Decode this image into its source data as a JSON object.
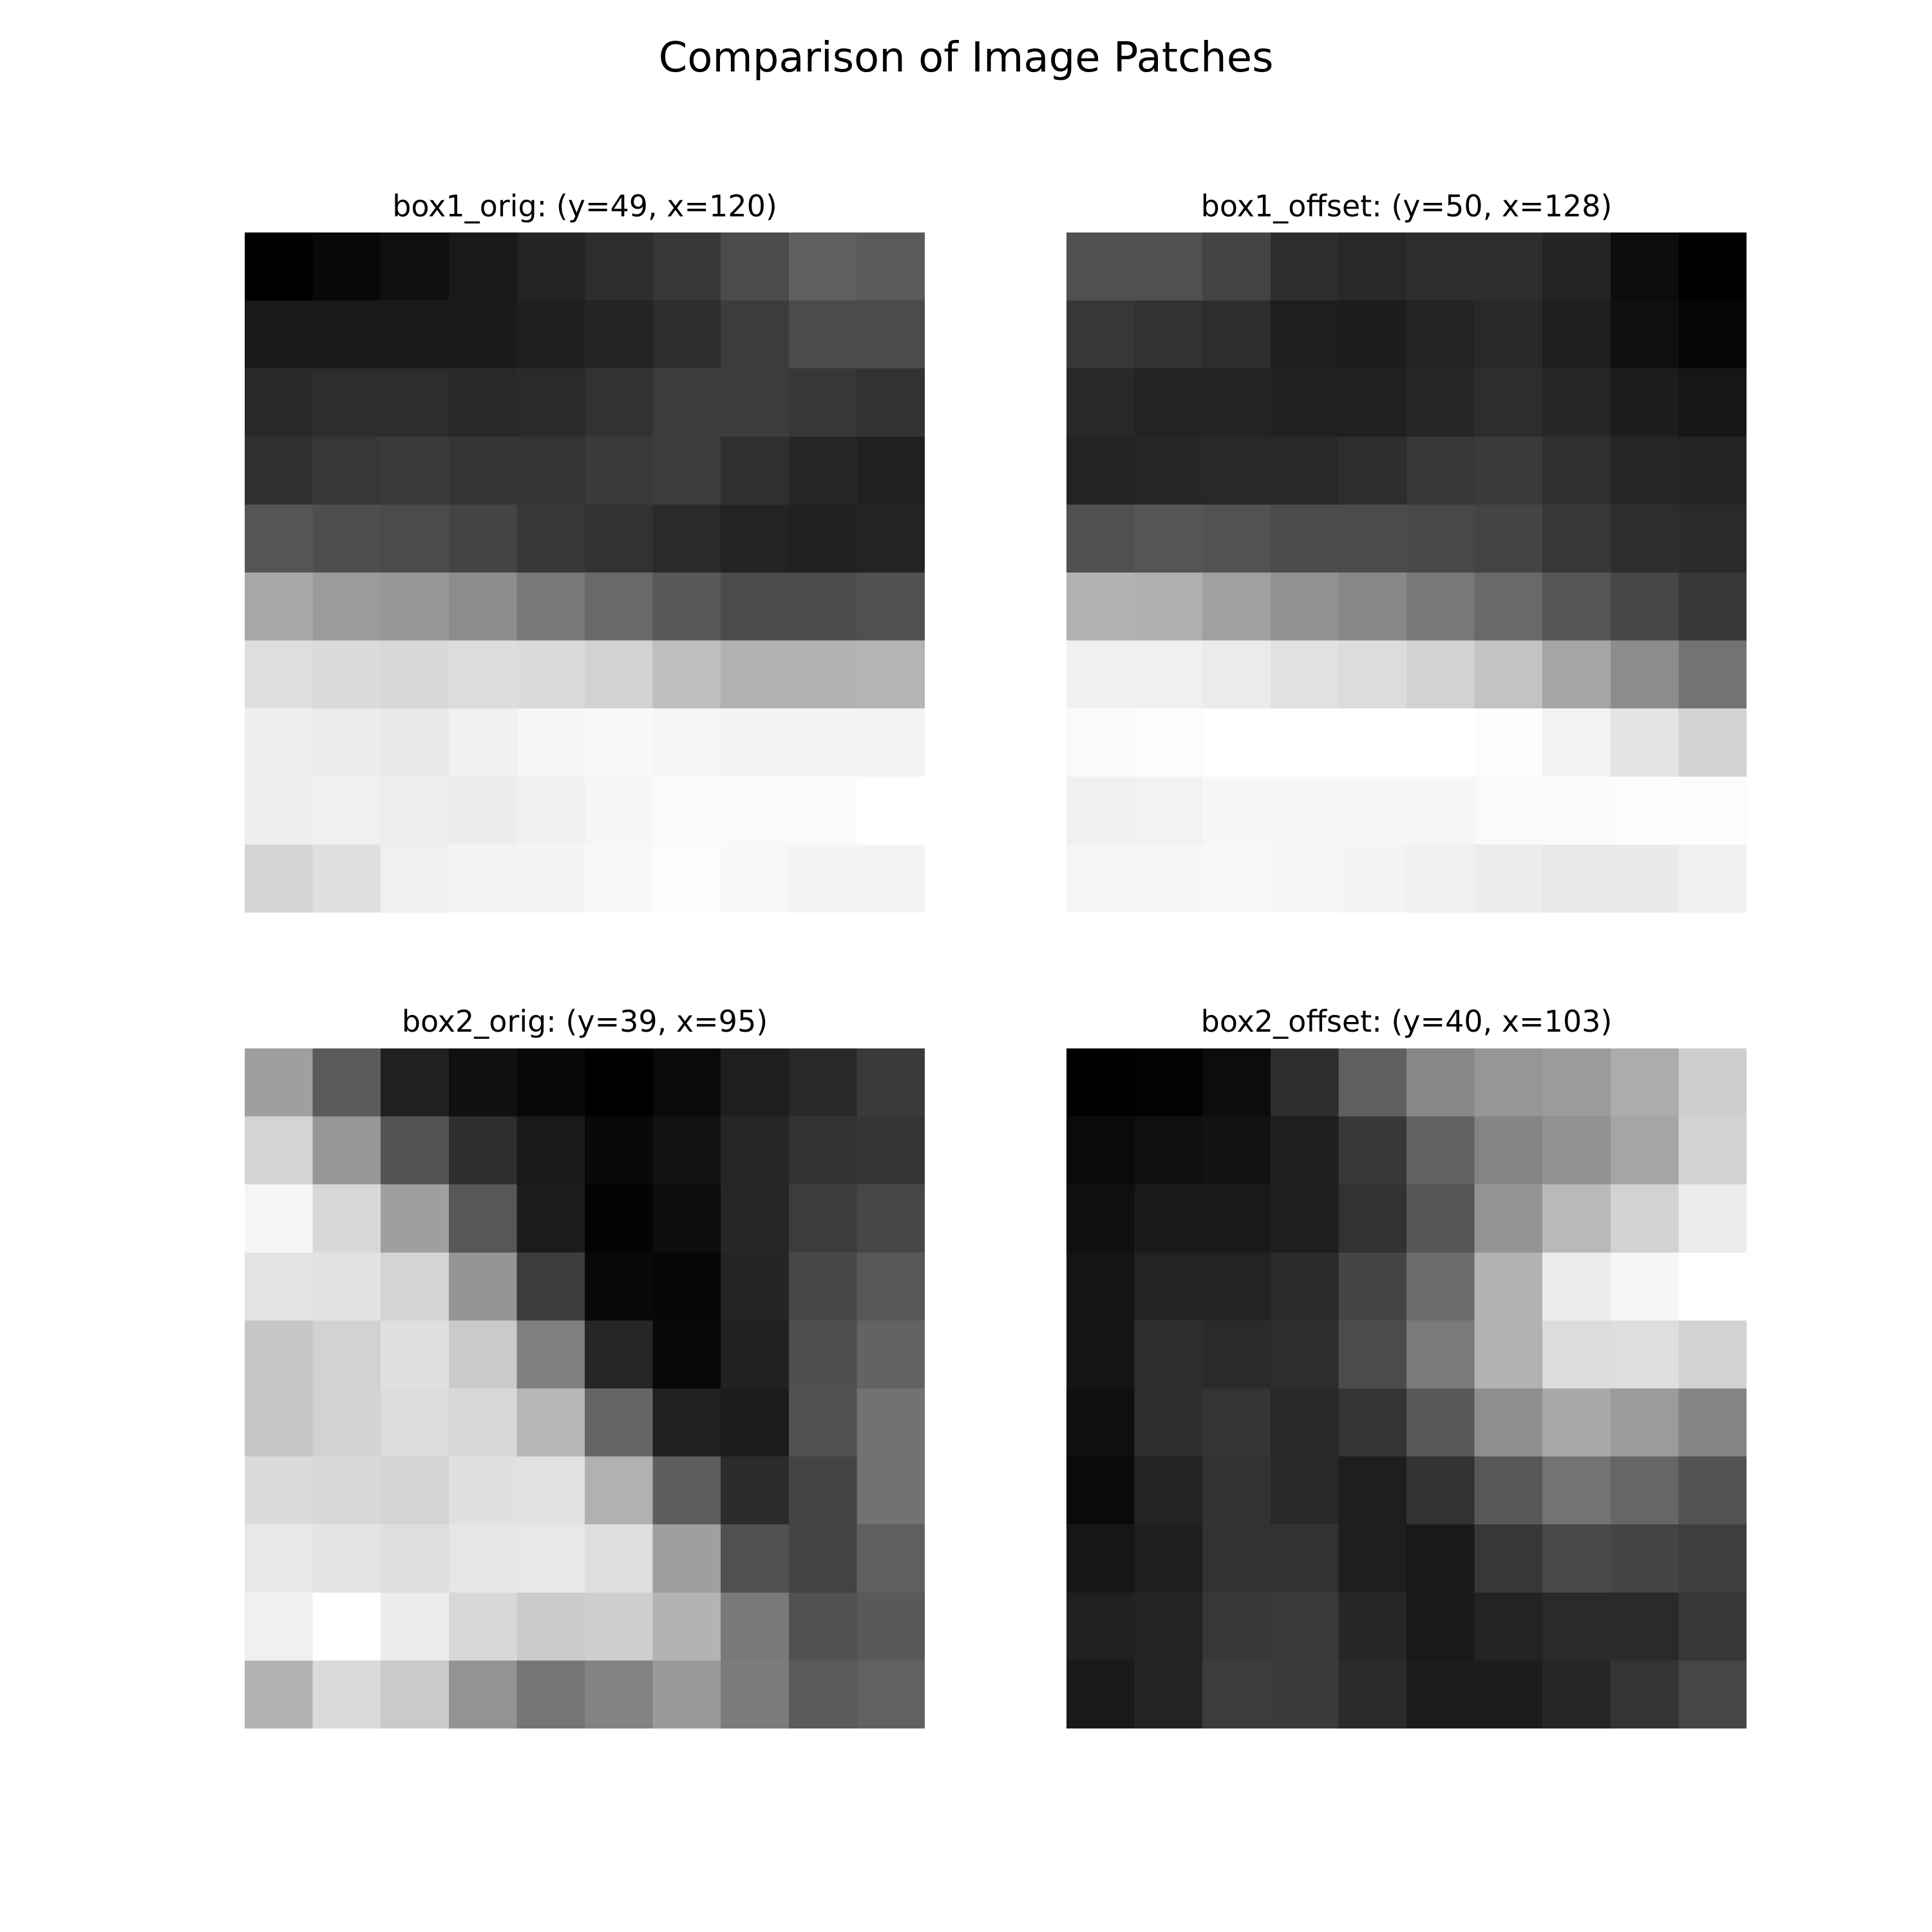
{
  "title": "Comparison of Image Patches",
  "chart_data": [
    {
      "type": "heatmap",
      "title": "box1_orig: (y=49, x=120)",
      "colormap": "gray",
      "grid": false,
      "rows": 10,
      "cols": 10,
      "values": [
        [
          0,
          8,
          15,
          25,
          35,
          45,
          55,
          75,
          95,
          90
        ],
        [
          25,
          25,
          25,
          25,
          30,
          35,
          45,
          60,
          75,
          75
        ],
        [
          40,
          45,
          45,
          40,
          42,
          50,
          60,
          60,
          55,
          50
        ],
        [
          48,
          55,
          58,
          52,
          52,
          58,
          60,
          48,
          38,
          32
        ],
        [
          85,
          78,
          75,
          68,
          55,
          50,
          42,
          35,
          32,
          35
        ],
        [
          168,
          155,
          150,
          140,
          120,
          105,
          88,
          75,
          75,
          80
        ],
        [
          222,
          218,
          216,
          220,
          218,
          210,
          190,
          178,
          178,
          180
        ],
        [
          238,
          236,
          234,
          240,
          246,
          248,
          246,
          244,
          244,
          244
        ],
        [
          238,
          240,
          238,
          236,
          240,
          246,
          250,
          250,
          250,
          255
        ],
        [
          212,
          224,
          240,
          244,
          244,
          248,
          252,
          248,
          244,
          244
        ]
      ]
    },
    {
      "type": "heatmap",
      "title": "box1_offset: (y=50, x=128)",
      "colormap": "gray",
      "grid": false,
      "rows": 10,
      "cols": 10,
      "values": [
        [
          80,
          80,
          68,
          45,
          40,
          45,
          45,
          35,
          12,
          0
        ],
        [
          55,
          50,
          45,
          30,
          28,
          35,
          40,
          30,
          15,
          5
        ],
        [
          40,
          35,
          35,
          32,
          32,
          38,
          45,
          38,
          28,
          22
        ],
        [
          35,
          38,
          40,
          40,
          45,
          55,
          58,
          48,
          38,
          35
        ],
        [
          80,
          85,
          82,
          75,
          75,
          72,
          68,
          55,
          45,
          42
        ],
        [
          178,
          175,
          160,
          145,
          135,
          120,
          105,
          85,
          70,
          55
        ],
        [
          240,
          240,
          235,
          225,
          220,
          210,
          195,
          165,
          140,
          115
        ],
        [
          250,
          252,
          255,
          255,
          255,
          255,
          252,
          242,
          228,
          210
        ],
        [
          240,
          242,
          246,
          246,
          246,
          246,
          250,
          250,
          252,
          252
        ],
        [
          246,
          246,
          248,
          246,
          244,
          240,
          236,
          232,
          234,
          240
        ]
      ]
    },
    {
      "type": "heatmap",
      "title": "box2_orig: (y=39, x=95)",
      "colormap": "gray",
      "grid": false,
      "rows": 10,
      "cols": 10,
      "values": [
        [
          160,
          92,
          35,
          18,
          10,
          2,
          12,
          32,
          42,
          60
        ],
        [
          212,
          152,
          85,
          48,
          28,
          10,
          20,
          40,
          52,
          55
        ],
        [
          246,
          216,
          160,
          88,
          30,
          5,
          15,
          40,
          62,
          72
        ],
        [
          228,
          226,
          212,
          150,
          62,
          10,
          8,
          38,
          72,
          88
        ],
        [
          198,
          210,
          224,
          202,
          128,
          40,
          10,
          35,
          80,
          100
        ],
        [
          198,
          210,
          220,
          216,
          184,
          102,
          35,
          30,
          82,
          115
        ],
        [
          218,
          216,
          212,
          224,
          226,
          178,
          95,
          45,
          68,
          115
        ],
        [
          232,
          228,
          222,
          230,
          232,
          222,
          160,
          82,
          68,
          96
        ],
        [
          240,
          255,
          236,
          216,
          202,
          206,
          180,
          122,
          82,
          90
        ],
        [
          180,
          218,
          202,
          148,
          118,
          132,
          155,
          125,
          92,
          98
        ]
      ]
    },
    {
      "type": "heatmap",
      "title": "box2_offset: (y=40, x=103)",
      "colormap": "gray",
      "grid": false,
      "rows": 10,
      "cols": 10,
      "values": [
        [
          0,
          2,
          12,
          45,
          95,
          135,
          150,
          155,
          172,
          205
        ],
        [
          10,
          15,
          18,
          30,
          55,
          98,
          132,
          145,
          165,
          210
        ],
        [
          15,
          25,
          25,
          30,
          50,
          85,
          148,
          185,
          210,
          236
        ],
        [
          20,
          35,
          35,
          42,
          68,
          108,
          178,
          235,
          246,
          255
        ],
        [
          20,
          45,
          42,
          45,
          75,
          122,
          178,
          220,
          222,
          210
        ],
        [
          15,
          45,
          52,
          40,
          52,
          88,
          142,
          168,
          155,
          132
        ],
        [
          10,
          35,
          50,
          40,
          30,
          50,
          88,
          115,
          102,
          82
        ],
        [
          22,
          30,
          50,
          50,
          30,
          25,
          55,
          72,
          68,
          62
        ],
        [
          32,
          35,
          55,
          58,
          38,
          25,
          35,
          42,
          42,
          55
        ],
        [
          25,
          35,
          60,
          58,
          42,
          28,
          28,
          38,
          52,
          70
        ]
      ]
    }
  ]
}
